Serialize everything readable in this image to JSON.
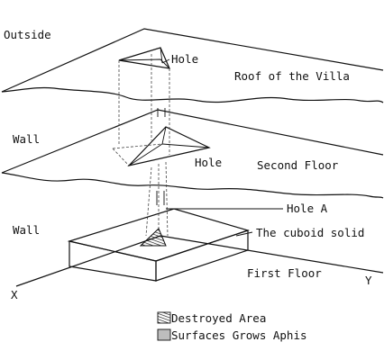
{
  "labels": {
    "outside": "Outside",
    "hole_top": "Hole",
    "roof": "Roof of the Villa",
    "wall_upper": "Wall",
    "hole_mid": "Hole",
    "second_floor": "Second Floor",
    "hole_a": "Hole A",
    "wall_lower": "Wall",
    "cuboid": "The cuboid solid",
    "first_floor": "First Floor",
    "axis_x": "X",
    "axis_y": "Y"
  },
  "legend": {
    "destroyed": "Destroyed Area",
    "aphis": "Surfaces Grows Aphis"
  },
  "colors": {
    "aphis_fill": "#bdbdbd",
    "line": "#111111"
  }
}
